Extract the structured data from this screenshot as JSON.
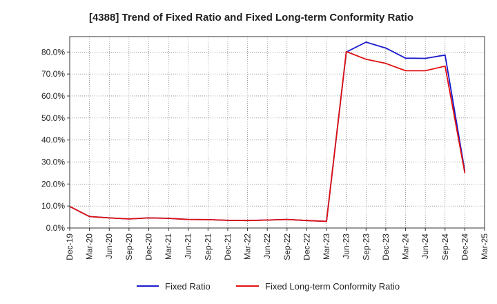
{
  "chart_data": {
    "type": "line",
    "title": "[4388]  Trend of Fixed Ratio and Fixed Long-term Conformity Ratio",
    "xlabel": "",
    "ylabel": "",
    "x_ticks": [
      "Dec-19",
      "Mar-20",
      "Jun-20",
      "Sep-20",
      "Dec-20",
      "Mar-21",
      "Jun-21",
      "Sep-21",
      "Dec-21",
      "Mar-22",
      "Jun-22",
      "Sep-22",
      "Dec-22",
      "Mar-23",
      "Jun-23",
      "Sep-23",
      "Dec-23",
      "Mar-24",
      "Jun-24",
      "Sep-24",
      "Dec-24",
      "Mar-25"
    ],
    "y_ticks": [
      "0.0%",
      "10.0%",
      "20.0%",
      "30.0%",
      "40.0%",
      "50.0%",
      "60.0%",
      "70.0%",
      "80.0%"
    ],
    "ylim": [
      0,
      87
    ],
    "grid": true,
    "legend_position": "bottom",
    "series": [
      {
        "name": "Fixed Ratio",
        "color": "#1a1acc",
        "x": [
          "Dec-19",
          "Mar-20",
          "Jun-20",
          "Sep-20",
          "Dec-20",
          "Mar-21",
          "Jun-21",
          "Sep-21",
          "Dec-21",
          "Mar-22",
          "Jun-22",
          "Sep-22",
          "Dec-22",
          "Mar-23",
          "Jun-23",
          "Sep-23",
          "Dec-23",
          "Mar-24",
          "Jun-24",
          "Sep-24",
          "Dec-24"
        ],
        "values": [
          9.8,
          5.2,
          4.6,
          4.1,
          4.6,
          4.4,
          3.9,
          3.8,
          3.5,
          3.4,
          3.6,
          3.9,
          3.4,
          3.0,
          80.0,
          84.5,
          81.8,
          77.2,
          77.1,
          78.6,
          25.8
        ]
      },
      {
        "name": "Fixed Long-term Conformity Ratio",
        "color": "#e01010",
        "x": [
          "Dec-19",
          "Mar-20",
          "Jun-20",
          "Sep-20",
          "Dec-20",
          "Mar-21",
          "Jun-21",
          "Sep-21",
          "Dec-21",
          "Mar-22",
          "Jun-22",
          "Sep-22",
          "Dec-22",
          "Mar-23",
          "Jun-23",
          "Sep-23",
          "Dec-23",
          "Mar-24",
          "Jun-24",
          "Sep-24",
          "Dec-24"
        ],
        "values": [
          9.8,
          5.2,
          4.6,
          4.1,
          4.6,
          4.4,
          3.9,
          3.8,
          3.5,
          3.4,
          3.6,
          3.9,
          3.4,
          3.0,
          80.2,
          76.7,
          74.8,
          71.5,
          71.5,
          73.6,
          25.0
        ]
      }
    ]
  }
}
